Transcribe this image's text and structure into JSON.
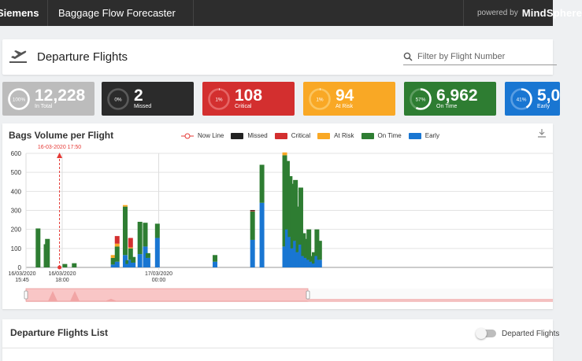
{
  "topbar": {
    "brand": "Siemens",
    "app_title": "Baggage Flow Forecaster",
    "powered_by": "powered by",
    "powered_brand": "MindSphere"
  },
  "header": {
    "title": "Departure Flights",
    "filter_placeholder": "Filter by Flight Number"
  },
  "kpis": [
    {
      "percent": 100,
      "percent_label": "100%",
      "value": "12,228",
      "label": "In Total",
      "color": "#bcbcbc",
      "ring": "#ffffff",
      "track": "#d7d7d7"
    },
    {
      "percent": 0,
      "percent_label": "0%",
      "value": "2",
      "label": "Missed",
      "color": "#2b2b2b",
      "ring": "#ffffff",
      "track": "#5a5a5a"
    },
    {
      "percent": 1,
      "percent_label": "1%",
      "value": "108",
      "label": "Critical",
      "color": "#d32f2f",
      "ring": "#ffffff",
      "track": "#e56565"
    },
    {
      "percent": 1,
      "percent_label": "1%",
      "value": "94",
      "label": "At Risk",
      "color": "#f9a825",
      "ring": "#ffffff",
      "track": "#fbc560"
    },
    {
      "percent": 57,
      "percent_label": "57%",
      "value": "6,962",
      "label": "On Time",
      "color": "#2e7d32",
      "ring": "#ffffff",
      "track": "#5f9e62"
    },
    {
      "percent": 41,
      "percent_label": "41%",
      "value": "5,0",
      "label": "Early",
      "color": "#1976d2",
      "ring": "#ffffff",
      "track": "#5a9ee3"
    }
  ],
  "chart": {
    "title": "Bags Volume per Flight",
    "legend": [
      {
        "name": "Now Line",
        "color": "#e53935"
      },
      {
        "name": "Missed",
        "color": "#222222"
      },
      {
        "name": "Critical",
        "color": "#d32f2f"
      },
      {
        "name": "At Risk",
        "color": "#f9a825"
      },
      {
        "name": "On Time",
        "color": "#2e7d32"
      },
      {
        "name": "Early",
        "color": "#1976d2"
      }
    ],
    "now_label": "16-03-2020 17:50"
  },
  "chart_data": {
    "type": "bar",
    "stacked": true,
    "title": "Bags Volume per Flight",
    "ylim": [
      0,
      600
    ],
    "yticks": [
      0,
      100,
      200,
      300,
      400,
      500,
      600
    ],
    "xlim": [
      "2020-03-16T15:45",
      "2020-03-18T00:30"
    ],
    "xtick_labels": [
      {
        "at": "2020-03-16T15:45",
        "lines": [
          "16/03/2020",
          "15:45"
        ]
      },
      {
        "at": "2020-03-16T18:00",
        "lines": [
          "16/03/2020",
          "18:00"
        ]
      },
      {
        "at": "2020-03-17T00:00",
        "lines": [
          "17/03/2020",
          "00:00"
        ]
      }
    ],
    "now_line": "2020-03-16T17:50",
    "grid": true,
    "legend_position": "top",
    "series_order": [
      "Early",
      "On Time",
      "At Risk",
      "Critical",
      "Missed"
    ],
    "series_colors": {
      "Early": "#1976d2",
      "On Time": "#2e7d32",
      "At Risk": "#f9a825",
      "Critical": "#d32f2f",
      "Missed": "#222222"
    },
    "bars": [
      {
        "t": "2020-03-16T16:30",
        "Early": 0,
        "On Time": 205,
        "At Risk": 0,
        "Critical": 0,
        "Missed": 0
      },
      {
        "t": "2020-03-16T17:00",
        "Early": 0,
        "On Time": 122,
        "At Risk": 0,
        "Critical": 0,
        "Missed": 0
      },
      {
        "t": "2020-03-16T17:05",
        "Early": 0,
        "On Time": 150,
        "At Risk": 0,
        "Critical": 0,
        "Missed": 0
      },
      {
        "t": "2020-03-16T18:10",
        "Early": 0,
        "On Time": 18,
        "At Risk": 0,
        "Critical": 0,
        "Missed": 0
      },
      {
        "t": "2020-03-16T18:45",
        "Early": 0,
        "On Time": 22,
        "At Risk": 0,
        "Critical": 0,
        "Missed": 0
      },
      {
        "t": "2020-03-16T21:10",
        "Early": 15,
        "On Time": 35,
        "At Risk": 15,
        "Critical": 0,
        "Missed": 0
      },
      {
        "t": "2020-03-16T21:25",
        "Early": 30,
        "On Time": 80,
        "At Risk": 15,
        "Critical": 40,
        "Missed": 0
      },
      {
        "t": "2020-03-16T21:55",
        "Early": 65,
        "On Time": 255,
        "At Risk": 8,
        "Critical": 0,
        "Missed": 0
      },
      {
        "t": "2020-03-16T22:05",
        "Early": 18,
        "On Time": 20,
        "At Risk": 0,
        "Critical": 0,
        "Missed": 0
      },
      {
        "t": "2020-03-16T22:15",
        "Early": 40,
        "On Time": 60,
        "At Risk": 5,
        "Critical": 50,
        "Missed": 0
      },
      {
        "t": "2020-03-16T22:25",
        "Early": 25,
        "On Time": 30,
        "At Risk": 0,
        "Critical": 0,
        "Missed": 0
      },
      {
        "t": "2020-03-16T22:50",
        "Early": 70,
        "On Time": 170,
        "At Risk": 0,
        "Critical": 0,
        "Missed": 0
      },
      {
        "t": "2020-03-16T23:10",
        "Early": 110,
        "On Time": 125,
        "At Risk": 0,
        "Critical": 0,
        "Missed": 0
      },
      {
        "t": "2020-03-16T23:20",
        "Early": 50,
        "On Time": 25,
        "At Risk": 0,
        "Critical": 0,
        "Missed": 0
      },
      {
        "t": "2020-03-16T23:55",
        "Early": 155,
        "On Time": 75,
        "At Risk": 0,
        "Critical": 0,
        "Missed": 0
      },
      {
        "t": "2020-03-17T03:30",
        "Early": 30,
        "On Time": 35,
        "At Risk": 0,
        "Critical": 0,
        "Missed": 0
      },
      {
        "t": "2020-03-17T05:50",
        "Early": 145,
        "On Time": 150,
        "At Risk": 0,
        "Critical": 5,
        "Missed": 2
      },
      {
        "t": "2020-03-17T06:25",
        "Early": 340,
        "On Time": 200,
        "At Risk": 0,
        "Critical": 0,
        "Missed": 0
      },
      {
        "t": "2020-03-17T07:50",
        "Early": 110,
        "On Time": 480,
        "At Risk": 15,
        "Critical": 0,
        "Missed": 0
      },
      {
        "t": "2020-03-17T08:00",
        "Early": 200,
        "On Time": 360,
        "At Risk": 0,
        "Critical": 0,
        "Missed": 0
      },
      {
        "t": "2020-03-17T08:10",
        "Early": 160,
        "On Time": 320,
        "At Risk": 0,
        "Critical": 0,
        "Missed": 0
      },
      {
        "t": "2020-03-17T08:20",
        "Early": 100,
        "On Time": 340,
        "At Risk": 0,
        "Critical": 0,
        "Missed": 0
      },
      {
        "t": "2020-03-17T08:30",
        "Early": 140,
        "On Time": 320,
        "At Risk": 0,
        "Critical": 0,
        "Missed": 0
      },
      {
        "t": "2020-03-17T08:40",
        "Early": 80,
        "On Time": 240,
        "At Risk": 0,
        "Critical": 0,
        "Missed": 0
      },
      {
        "t": "2020-03-17T08:50",
        "Early": 120,
        "On Time": 300,
        "At Risk": 0,
        "Critical": 0,
        "Missed": 0
      },
      {
        "t": "2020-03-17T09:00",
        "Early": 60,
        "On Time": 120,
        "At Risk": 0,
        "Critical": 0,
        "Missed": 0
      },
      {
        "t": "2020-03-17T09:10",
        "Early": 50,
        "On Time": 100,
        "At Risk": 0,
        "Critical": 0,
        "Missed": 0
      },
      {
        "t": "2020-03-17T09:20",
        "Early": 40,
        "On Time": 160,
        "At Risk": 0,
        "Critical": 0,
        "Missed": 0
      },
      {
        "t": "2020-03-17T09:30",
        "Early": 30,
        "On Time": 30,
        "At Risk": 0,
        "Critical": 0,
        "Missed": 0
      },
      {
        "t": "2020-03-17T09:40",
        "Early": 20,
        "On Time": 60,
        "At Risk": 0,
        "Critical": 0,
        "Missed": 0
      },
      {
        "t": "2020-03-17T09:50",
        "Early": 60,
        "On Time": 140,
        "At Risk": 0,
        "Critical": 0,
        "Missed": 0
      },
      {
        "t": "2020-03-17T10:00",
        "Early": 40,
        "On Time": 100,
        "At Risk": 0,
        "Critical": 0,
        "Missed": 0
      }
    ]
  },
  "list": {
    "title": "Departure Flights List",
    "toggle_label": "Departed Flights"
  }
}
